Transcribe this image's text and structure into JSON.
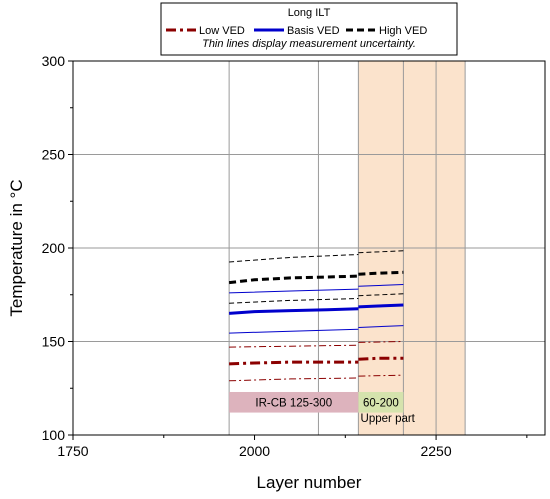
{
  "chart_data": {
    "type": "line",
    "title": "",
    "xlabel": "Layer number",
    "ylabel": "Temperature in °C",
    "xlim": [
      1750,
      2400
    ],
    "ylim": [
      100,
      300
    ],
    "xticks": [
      1750,
      2000,
      2250
    ],
    "yticks": [
      100,
      150,
      200,
      250,
      300
    ],
    "grid": true,
    "vertical_lines": [
      1965,
      2088,
      2143,
      2205,
      2250,
      2290
    ],
    "shaded_regions": [
      {
        "x": [
          2143,
          2290
        ],
        "color": "#fbe3cc"
      }
    ],
    "annotation_boxes": [
      {
        "text": "IR-CB 125-300",
        "x": [
          1965,
          2143
        ],
        "y": [
          112,
          123
        ],
        "color": "#ddb3bd"
      },
      {
        "text": "60-200",
        "x": [
          2143,
          2205
        ],
        "y": [
          112,
          123
        ],
        "color": "#d5e3ad"
      }
    ],
    "annotations": [
      {
        "text": "Upper part",
        "x": 2146,
        "y": 109
      }
    ],
    "legend": {
      "title": "Long ILT",
      "entries": [
        "Low VED",
        "Basis VED",
        "High VED"
      ],
      "note": "Thin lines display measurement uncertainty.",
      "placement": "top-center"
    },
    "series": [
      {
        "name": "Low VED",
        "style": "dash-dot",
        "color": "#8b0000",
        "width": 3,
        "segments": [
          {
            "x": [
              1965,
              2000,
              2050,
              2100,
              2143
            ],
            "y": [
              138,
              138.5,
              139,
              139,
              139
            ]
          },
          {
            "x": [
              2143,
              2170,
              2205
            ],
            "y": [
              140.5,
              141,
              141
            ]
          }
        ]
      },
      {
        "style": "dash-dot",
        "color": "#8b0000",
        "width": 1,
        "segments": [
          {
            "x": [
              1965,
              2050,
              2143
            ],
            "y": [
              129,
              130,
              130.5
            ]
          },
          {
            "x": [
              2143,
              2205
            ],
            "y": [
              131.5,
              132
            ]
          }
        ]
      },
      {
        "style": "dash-dot",
        "color": "#8b0000",
        "width": 1,
        "segments": [
          {
            "x": [
              1965,
              2050,
              2143
            ],
            "y": [
              147,
              147.5,
              148
            ]
          },
          {
            "x": [
              2143,
              2205
            ],
            "y": [
              149.5,
              150
            ]
          }
        ]
      },
      {
        "name": "Basis VED",
        "style": "solid",
        "color": "#0000cc",
        "width": 3,
        "segments": [
          {
            "x": [
              1965,
              2000,
              2050,
              2100,
              2143
            ],
            "y": [
              165,
              166,
              166.5,
              167,
              167.5
            ]
          },
          {
            "x": [
              2143,
              2170,
              2205
            ],
            "y": [
              168.5,
              169,
              169.5
            ]
          }
        ]
      },
      {
        "style": "solid",
        "color": "#0000cc",
        "width": 1,
        "segments": [
          {
            "x": [
              1965,
              2050,
              2143
            ],
            "y": [
              154.5,
              155.5,
              156.5
            ]
          },
          {
            "x": [
              2143,
              2205
            ],
            "y": [
              157.5,
              158.5
            ]
          }
        ]
      },
      {
        "style": "solid",
        "color": "#0000cc",
        "width": 1,
        "segments": [
          {
            "x": [
              1965,
              2050,
              2143
            ],
            "y": [
              176,
              177,
              178
            ]
          },
          {
            "x": [
              2143,
              2205
            ],
            "y": [
              179.5,
              180.5
            ]
          }
        ]
      },
      {
        "name": "High VED",
        "style": "dashed",
        "color": "#000000",
        "width": 3,
        "segments": [
          {
            "x": [
              1965,
              2000,
              2050,
              2100,
              2143
            ],
            "y": [
              181.5,
              183,
              184,
              184.5,
              185
            ]
          },
          {
            "x": [
              2143,
              2170,
              2205
            ],
            "y": [
              186,
              186.5,
              187
            ]
          }
        ]
      },
      {
        "style": "dashed",
        "color": "#000000",
        "width": 1,
        "segments": [
          {
            "x": [
              1965,
              2050,
              2143
            ],
            "y": [
              170.5,
              172,
              173
            ]
          },
          {
            "x": [
              2143,
              2205
            ],
            "y": [
              174.5,
              175.5
            ]
          }
        ]
      },
      {
        "style": "dashed",
        "color": "#000000",
        "width": 1,
        "segments": [
          {
            "x": [
              1965,
              2050,
              2143
            ],
            "y": [
              192.5,
              195,
              196.5
            ]
          },
          {
            "x": [
              2143,
              2205
            ],
            "y": [
              197.5,
              198.5
            ]
          }
        ]
      }
    ]
  }
}
